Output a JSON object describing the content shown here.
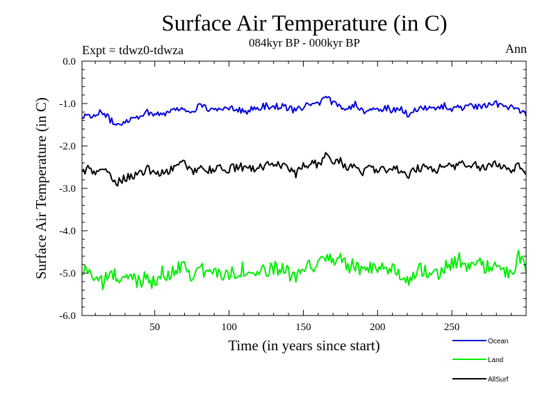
{
  "chart_data": {
    "type": "line",
    "title": "Surface Air Temperature (in C)",
    "subtitle": "084kyr BP - 000kyr BP",
    "experiment_label": "Expt = tdwz0-tdwza",
    "season_label": "Ann",
    "xlabel": "Time (in years since start)",
    "ylabel": "Surface Air Temperature (in C)",
    "xlim": [
      1,
      300
    ],
    "ylim": [
      -6.0,
      0.0
    ],
    "xticks": [
      50,
      100,
      150,
      200,
      250
    ],
    "yticks": [
      0.0,
      -1.0,
      -2.0,
      -3.0,
      -4.0,
      -5.0,
      -6.0
    ],
    "ytick_labels": [
      "0.0",
      "-1.0",
      "-2.0",
      "-3.0",
      "-4.0",
      "-5.0",
      "-6.0"
    ],
    "grid": false,
    "legend_position": "bottom-right",
    "series": [
      {
        "name": "Ocean",
        "color": "#0000dd",
        "keypoints": [
          [
            1,
            -1.3
          ],
          [
            5,
            -1.25
          ],
          [
            10,
            -1.3
          ],
          [
            15,
            -1.18
          ],
          [
            20,
            -1.4
          ],
          [
            25,
            -1.5
          ],
          [
            30,
            -1.4
          ],
          [
            35,
            -1.35
          ],
          [
            40,
            -1.28
          ],
          [
            45,
            -1.2
          ],
          [
            50,
            -1.25
          ],
          [
            55,
            -1.22
          ],
          [
            60,
            -1.2
          ],
          [
            65,
            -1.1
          ],
          [
            70,
            -1.15
          ],
          [
            75,
            -1.2
          ],
          [
            80,
            -1.05
          ],
          [
            85,
            -1.1
          ],
          [
            90,
            -1.2
          ],
          [
            95,
            -1.1
          ],
          [
            100,
            -1.08
          ],
          [
            105,
            -1.1
          ],
          [
            110,
            -1.2
          ],
          [
            115,
            -1.15
          ],
          [
            120,
            -1.1
          ],
          [
            125,
            -1.05
          ],
          [
            130,
            -1.08
          ],
          [
            135,
            -1.05
          ],
          [
            140,
            -1.1
          ],
          [
            145,
            -1.2
          ],
          [
            150,
            -1.05
          ],
          [
            155,
            -1.0
          ],
          [
            160,
            -1.05
          ],
          [
            165,
            -0.85
          ],
          [
            170,
            -1.0
          ],
          [
            175,
            -1.05
          ],
          [
            180,
            -1.1
          ],
          [
            185,
            -1.0
          ],
          [
            190,
            -1.15
          ],
          [
            195,
            -1.2
          ],
          [
            200,
            -1.15
          ],
          [
            205,
            -1.1
          ],
          [
            210,
            -1.15
          ],
          [
            215,
            -1.1
          ],
          [
            220,
            -1.25
          ],
          [
            225,
            -1.15
          ],
          [
            230,
            -1.1
          ],
          [
            235,
            -1.15
          ],
          [
            240,
            -1.1
          ],
          [
            245,
            -1.05
          ],
          [
            250,
            -1.15
          ],
          [
            255,
            -1.08
          ],
          [
            260,
            -1.1
          ],
          [
            265,
            -1.05
          ],
          [
            270,
            -1.1
          ],
          [
            275,
            -1.05
          ],
          [
            280,
            -1.0
          ],
          [
            285,
            -1.1
          ],
          [
            290,
            -1.05
          ],
          [
            295,
            -1.15
          ],
          [
            300,
            -1.22
          ]
        ]
      },
      {
        "name": "Land",
        "color": "#00ee00",
        "keypoints": [
          [
            1,
            -5.0
          ],
          [
            5,
            -4.9
          ],
          [
            10,
            -5.1
          ],
          [
            15,
            -5.25
          ],
          [
            20,
            -5.0
          ],
          [
            25,
            -5.1
          ],
          [
            30,
            -5.15
          ],
          [
            35,
            -5.1
          ],
          [
            40,
            -5.2
          ],
          [
            45,
            -5.0
          ],
          [
            50,
            -5.3
          ],
          [
            55,
            -5.0
          ],
          [
            60,
            -5.1
          ],
          [
            65,
            -4.85
          ],
          [
            70,
            -4.8
          ],
          [
            75,
            -5.05
          ],
          [
            80,
            -4.9
          ],
          [
            85,
            -5.0
          ],
          [
            90,
            -4.95
          ],
          [
            95,
            -5.05
          ],
          [
            100,
            -5.0
          ],
          [
            105,
            -4.95
          ],
          [
            110,
            -4.9
          ],
          [
            115,
            -5.05
          ],
          [
            120,
            -4.95
          ],
          [
            125,
            -5.0
          ],
          [
            130,
            -4.9
          ],
          [
            135,
            -4.85
          ],
          [
            140,
            -5.0
          ],
          [
            145,
            -5.2
          ],
          [
            150,
            -4.9
          ],
          [
            155,
            -4.8
          ],
          [
            160,
            -4.85
          ],
          [
            165,
            -4.6
          ],
          [
            170,
            -4.7
          ],
          [
            175,
            -4.6
          ],
          [
            180,
            -4.9
          ],
          [
            185,
            -4.8
          ],
          [
            190,
            -5.0
          ],
          [
            195,
            -4.9
          ],
          [
            200,
            -5.0
          ],
          [
            205,
            -4.9
          ],
          [
            210,
            -4.85
          ],
          [
            215,
            -5.0
          ],
          [
            220,
            -5.2
          ],
          [
            225,
            -4.95
          ],
          [
            230,
            -4.9
          ],
          [
            235,
            -4.95
          ],
          [
            240,
            -5.0
          ],
          [
            245,
            -4.85
          ],
          [
            250,
            -4.8
          ],
          [
            255,
            -4.7
          ],
          [
            260,
            -4.85
          ],
          [
            265,
            -4.75
          ],
          [
            270,
            -4.8
          ],
          [
            275,
            -4.9
          ],
          [
            280,
            -4.85
          ],
          [
            285,
            -4.95
          ],
          [
            290,
            -5.1
          ],
          [
            295,
            -4.55
          ],
          [
            300,
            -5.0
          ]
        ]
      },
      {
        "name": "AllSurf",
        "color": "#000000",
        "keypoints": [
          [
            1,
            -2.6
          ],
          [
            5,
            -2.55
          ],
          [
            10,
            -2.65
          ],
          [
            15,
            -2.5
          ],
          [
            20,
            -2.75
          ],
          [
            25,
            -2.85
          ],
          [
            30,
            -2.75
          ],
          [
            35,
            -2.7
          ],
          [
            40,
            -2.65
          ],
          [
            45,
            -2.55
          ],
          [
            50,
            -2.65
          ],
          [
            55,
            -2.6
          ],
          [
            60,
            -2.6
          ],
          [
            65,
            -2.45
          ],
          [
            70,
            -2.4
          ],
          [
            75,
            -2.6
          ],
          [
            80,
            -2.5
          ],
          [
            85,
            -2.55
          ],
          [
            90,
            -2.6
          ],
          [
            95,
            -2.5
          ],
          [
            100,
            -2.55
          ],
          [
            105,
            -2.5
          ],
          [
            110,
            -2.5
          ],
          [
            115,
            -2.55
          ],
          [
            120,
            -2.5
          ],
          [
            125,
            -2.45
          ],
          [
            130,
            -2.5
          ],
          [
            135,
            -2.45
          ],
          [
            140,
            -2.55
          ],
          [
            145,
            -2.7
          ],
          [
            150,
            -2.45
          ],
          [
            155,
            -2.4
          ],
          [
            160,
            -2.45
          ],
          [
            165,
            -2.2
          ],
          [
            170,
            -2.4
          ],
          [
            175,
            -2.35
          ],
          [
            180,
            -2.55
          ],
          [
            185,
            -2.45
          ],
          [
            190,
            -2.6
          ],
          [
            195,
            -2.55
          ],
          [
            200,
            -2.6
          ],
          [
            205,
            -2.55
          ],
          [
            210,
            -2.5
          ],
          [
            215,
            -2.55
          ],
          [
            220,
            -2.75
          ],
          [
            225,
            -2.55
          ],
          [
            230,
            -2.5
          ],
          [
            235,
            -2.55
          ],
          [
            240,
            -2.55
          ],
          [
            245,
            -2.45
          ],
          [
            250,
            -2.5
          ],
          [
            255,
            -2.4
          ],
          [
            260,
            -2.5
          ],
          [
            265,
            -2.45
          ],
          [
            270,
            -2.5
          ],
          [
            275,
            -2.45
          ],
          [
            280,
            -2.4
          ],
          [
            285,
            -2.5
          ],
          [
            290,
            -2.55
          ],
          [
            295,
            -2.45
          ],
          [
            300,
            -2.58
          ]
        ]
      }
    ]
  }
}
